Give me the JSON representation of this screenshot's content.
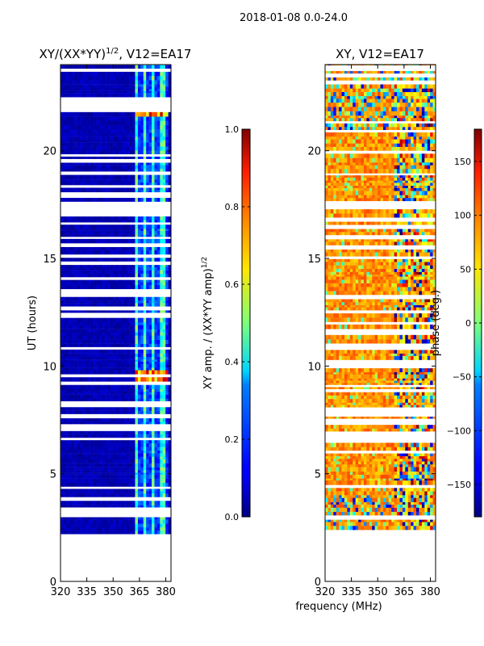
{
  "suptitle": "2018-01-08 0.0-24.0",
  "chart_data": [
    {
      "type": "heatmap",
      "panel": "amplitude",
      "title_main": "XY/(XX*YY)",
      "title_sup": "1/2",
      "title_rest": ", V12=EA17",
      "xlabel": "",
      "ylabel": "UT (hours)",
      "x_ticks": [
        320,
        335,
        350,
        365,
        380
      ],
      "x_tick_labels": [
        "320",
        "335",
        "350",
        "365",
        "380"
      ],
      "xlim": [
        320,
        383
      ],
      "y_ticks": [
        0,
        5,
        10,
        15,
        20
      ],
      "y_tick_labels": [
        "0",
        "5",
        "10",
        "15",
        "20"
      ],
      "ylim": [
        0,
        24
      ],
      "data_start_hour": 2.2,
      "colorbar": {
        "label_main": "XY amp. / (XX*YY amp)",
        "label_sup": "1/2",
        "range": [
          0.0,
          1.0
        ],
        "ticks": [
          0.0,
          0.2,
          0.4,
          0.6,
          0.8,
          1.0
        ],
        "tick_labels": [
          "0.0",
          "0.2",
          "0.4",
          "0.6",
          "0.8",
          "1.0"
        ],
        "colormap": "jet"
      },
      "annotations": [
        "bright band 362-382 MHz (~0.3-0.5)",
        "elevated values near 22 h and 9.5 h"
      ]
    },
    {
      "type": "heatmap",
      "panel": "phase",
      "title_main": "XY, V12=EA17",
      "xlabel": "frequency (MHz)",
      "ylabel": "",
      "x_ticks": [
        320,
        335,
        350,
        365,
        380
      ],
      "x_tick_labels": [
        "320",
        "335",
        "350",
        "365",
        "380"
      ],
      "xlim": [
        320,
        383
      ],
      "y_ticks": [
        0,
        5,
        10,
        15,
        20
      ],
      "y_tick_labels": [
        "0",
        "5",
        "10",
        "15",
        "20"
      ],
      "ylim": [
        0,
        24
      ],
      "data_start_hour": 2.2,
      "colorbar": {
        "label_main": "phase (deg.)",
        "range": [
          -180,
          180
        ],
        "ticks": [
          -150,
          -100,
          -50,
          0,
          50,
          100,
          150
        ],
        "tick_labels": [
          "−150",
          "−100",
          "−50",
          "0",
          "50",
          "100",
          "150"
        ],
        "colormap": "jet"
      },
      "annotations": [
        "mostly 40-110 deg",
        "phase wraps in 362-382 MHz band"
      ]
    }
  ]
}
